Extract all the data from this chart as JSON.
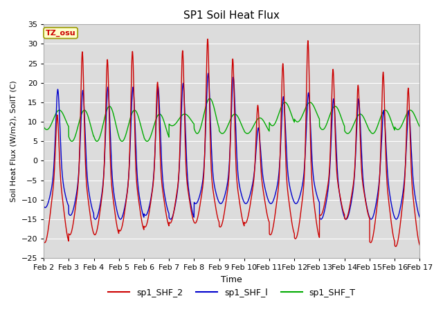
{
  "title": "SP1 Soil Heat Flux",
  "xlabel": "Time",
  "ylabel": "Soil Heat Flux (W/m2), SoilT (C)",
  "ylim": [
    -25,
    35
  ],
  "xlim": [
    0,
    360
  ],
  "x_tick_labels": [
    "Feb 2",
    "Feb 3",
    "Feb 4",
    "Feb 5",
    "Feb 6",
    "Feb 7",
    "Feb 8",
    "Feb 9",
    "Feb 10",
    "Feb 11",
    "Feb 12",
    "Feb 13",
    "Feb 14",
    "Feb 15",
    "Feb 16",
    "Feb 17"
  ],
  "x_tick_positions": [
    0,
    24,
    48,
    72,
    96,
    120,
    144,
    168,
    192,
    216,
    240,
    264,
    288,
    312,
    336,
    360
  ],
  "y_ticks": [
    -25,
    -20,
    -15,
    -10,
    -5,
    0,
    5,
    10,
    15,
    20,
    25,
    30,
    35
  ],
  "color_shf2": "#cc0000",
  "color_shf1": "#0000cc",
  "color_shft": "#00aa00",
  "bg_color": "#dcdcdc",
  "legend_labels": [
    "sp1_SHF_2",
    "sp1_SHF_l",
    "sp1_SHF_T"
  ],
  "tz_label": "TZ_osu",
  "tz_bg": "#ffffcc",
  "tz_border": "#999900",
  "tz_text_color": "#cc0000",
  "figsize": [
    6.4,
    4.8
  ],
  "dpi": 100
}
